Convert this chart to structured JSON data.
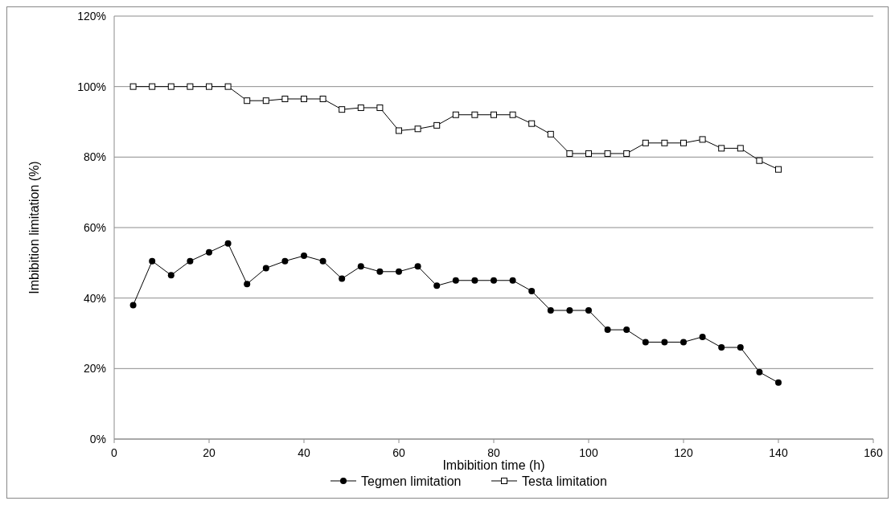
{
  "chart_data": {
    "type": "line",
    "xlabel": "Imbibition time (h)",
    "ylabel": "Imbibition limitation (%)",
    "x": [
      4,
      8,
      12,
      16,
      20,
      24,
      28,
      32,
      36,
      40,
      44,
      48,
      52,
      56,
      60,
      64,
      68,
      72,
      76,
      80,
      84,
      88,
      92,
      96,
      100,
      104,
      108,
      112,
      116,
      120,
      124,
      128,
      132,
      136,
      140
    ],
    "series": [
      {
        "name": "Tegmen limitation",
        "color": "#000000",
        "marker": "circle",
        "values": [
          38,
          50.5,
          46.5,
          50.5,
          53,
          55.5,
          44,
          48.5,
          50.5,
          52,
          50.5,
          45.5,
          49,
          47.5,
          47.5,
          49,
          43.5,
          45,
          45,
          45,
          45,
          42,
          36.5,
          36.5,
          36.5,
          31,
          31,
          27.5,
          27.5,
          27.5,
          29,
          26,
          26,
          19,
          16
        ]
      },
      {
        "name": "Testa limitation",
        "color": "#000000",
        "marker": "square",
        "values": [
          100,
          100,
          100,
          100,
          100,
          100,
          96,
          96,
          96.5,
          96.5,
          96.5,
          93.5,
          94,
          94,
          87.5,
          88,
          89,
          92,
          92,
          92,
          92,
          89.5,
          86.5,
          81,
          81,
          81,
          81,
          84,
          84,
          84,
          85,
          82.5,
          82.5,
          79,
          76.5
        ]
      }
    ],
    "xlim": [
      0,
      160
    ],
    "xticks": [
      0,
      20,
      40,
      60,
      80,
      100,
      120,
      140,
      160
    ],
    "ylim": [
      0,
      120
    ],
    "yticks": [
      {
        "value": 0,
        "label": "0%"
      },
      {
        "value": 20,
        "label": "20%"
      },
      {
        "value": 40,
        "label": "40%"
      },
      {
        "value": 60,
        "label": "60%"
      },
      {
        "value": 80,
        "label": "80%"
      },
      {
        "value": 100,
        "label": "100%"
      },
      {
        "value": 120,
        "label": "120%"
      }
    ],
    "grid": "y",
    "legend": "bottom"
  }
}
